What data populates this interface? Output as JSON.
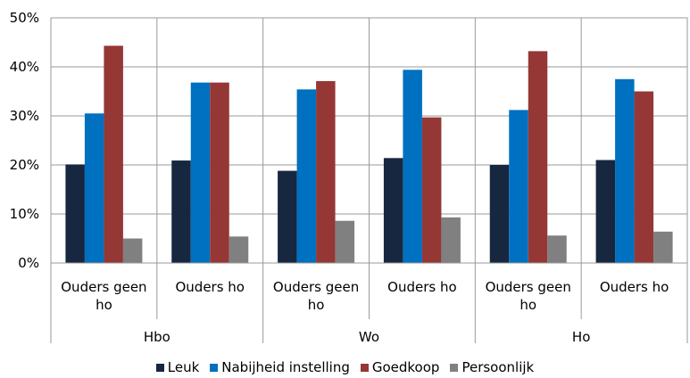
{
  "chart_data": {
    "type": "bar",
    "categories": [
      "Ouders geen ho",
      "Ouders ho",
      "Ouders geen ho",
      "Ouders ho",
      "Ouders geen ho",
      "Ouders ho"
    ],
    "groups": [
      "Hbo",
      "Wo",
      "Ho"
    ],
    "series": [
      {
        "name": "Leuk",
        "color": "#17273f",
        "values": [
          20.1,
          20.9,
          18.8,
          21.4,
          20.0,
          21.0
        ]
      },
      {
        "name": "Nabijheid instelling",
        "color": "#0070c0",
        "values": [
          30.5,
          36.8,
          35.4,
          39.4,
          31.2,
          37.5
        ]
      },
      {
        "name": "Goedkoop",
        "color": "#953735",
        "values": [
          44.3,
          36.8,
          37.1,
          29.7,
          43.2,
          35.0
        ]
      },
      {
        "name": "Persoonlijk",
        "color": "#808080",
        "values": [
          5.0,
          5.4,
          8.6,
          9.3,
          5.6,
          6.4
        ]
      }
    ],
    "ylim": [
      0,
      50
    ],
    "yticks": [
      {
        "value": 0,
        "label": "0%"
      },
      {
        "value": 10,
        "label": "10%"
      },
      {
        "value": 20,
        "label": "20%"
      },
      {
        "value": 30,
        "label": "30%"
      },
      {
        "value": 40,
        "label": "40%"
      },
      {
        "value": 50,
        "label": "50%"
      }
    ],
    "grid": true,
    "legend": "bottom"
  }
}
